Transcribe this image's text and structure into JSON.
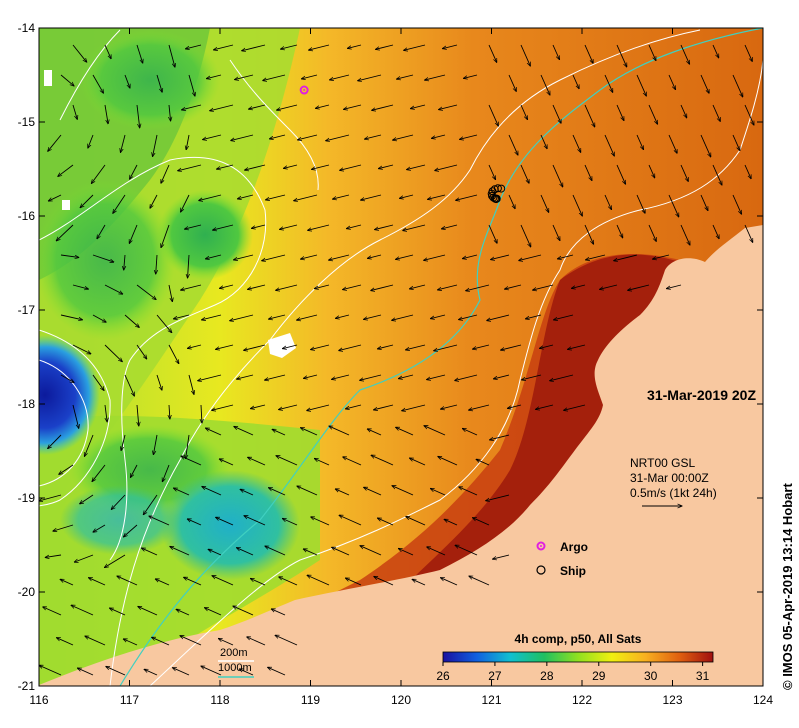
{
  "map": {
    "lon_range": [
      116,
      124
    ],
    "lat_range": [
      -21,
      -14
    ],
    "lon_ticks": [
      116,
      117,
      118,
      119,
      120,
      121,
      122,
      123,
      124
    ],
    "lon_tick_labels": [
      "116",
      "117",
      "118",
      "119",
      "120",
      "121",
      "122",
      "123",
      "124"
    ],
    "lat_ticks": [
      -14,
      -15,
      -16,
      -17,
      -18,
      -19,
      -20,
      -21
    ],
    "lat_tick_labels": [
      "-14",
      "-15",
      "-16",
      "-17",
      "-18",
      "-19",
      "-20",
      "-21"
    ],
    "land_color": "#f8c8a0",
    "cloud_color": "#ffffff"
  },
  "labels": {
    "date_stamp": "31-Mar-2019 20Z",
    "current_line1": "NRT00 GSL",
    "current_line2": "31-Mar 00:00Z",
    "current_line3": "0.5m/s (1kt 24h)",
    "argo": "Argo",
    "ship": "Ship",
    "isobath_200": "200m",
    "isobath_1000": "1000m",
    "colorbar_title": "4h comp, p50, All Sats",
    "credit": "© IMOS 05-Apr-2019 13:14 Hobart"
  },
  "colorbar": {
    "min": 26,
    "max": 31.2,
    "ticks": [
      26,
      27,
      28,
      29,
      30,
      31
    ],
    "tick_labels": [
      "26",
      "27",
      "28",
      "29",
      "30",
      "31"
    ],
    "stops": [
      "#1a10a0",
      "#1060e0",
      "#10c0d0",
      "#20c060",
      "#90e020",
      "#f0f010",
      "#f8b020",
      "#e06010",
      "#a01010"
    ]
  },
  "markers": {
    "argo": {
      "lon": 118.93,
      "lat": -14.66,
      "color": "#e020e0"
    },
    "ship": {
      "lon": 121.05,
      "lat": -15.82
    }
  },
  "isobath_colors": {
    "m200": "#ffffff",
    "m1000": "#40d0c0"
  }
}
